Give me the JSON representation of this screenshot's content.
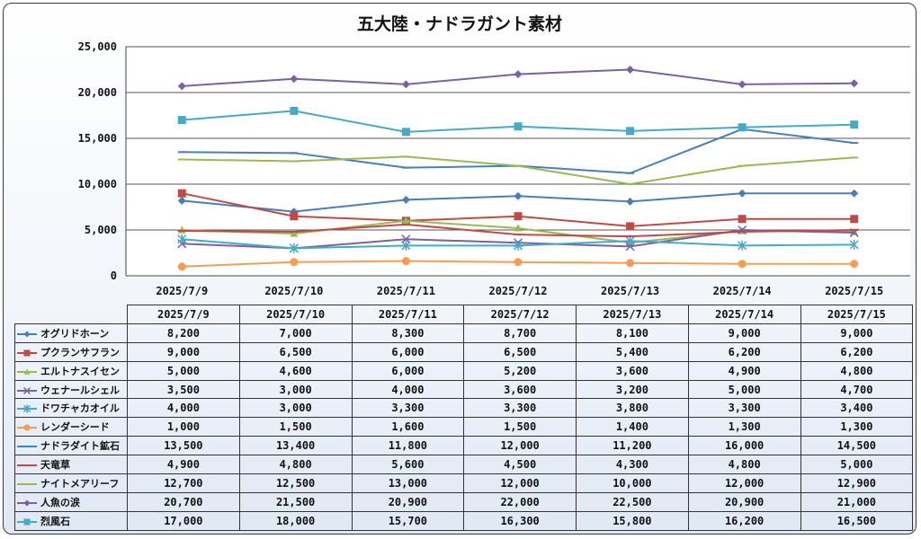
{
  "chart_data": {
    "type": "line",
    "title": "五大陸・ナドラガント素材",
    "categories": [
      "2025/7/9",
      "2025/7/10",
      "2025/7/11",
      "2025/7/12",
      "2025/7/13",
      "2025/7/14",
      "2025/7/15"
    ],
    "ylim": [
      0,
      25000
    ],
    "yticks": [
      "0",
      "5,000",
      "10,000",
      "15,000",
      "20,000",
      "25,000"
    ],
    "grid": true,
    "series": [
      {
        "name": "オグリドホーン",
        "color": "#4a7ebb",
        "marker": "diamond",
        "values": [
          8200,
          7000,
          8300,
          8700,
          8100,
          9000,
          9000
        ],
        "labels": [
          "8,200",
          "7,000",
          "8,300",
          "8,700",
          "8,100",
          "9,000",
          "9,000"
        ]
      },
      {
        "name": "プクランサフラン",
        "color": "#be4b48",
        "marker": "square",
        "values": [
          9000,
          6500,
          6000,
          6500,
          5400,
          6200,
          6200
        ],
        "labels": [
          "9,000",
          "6,500",
          "6,000",
          "6,500",
          "5,400",
          "6,200",
          "6,200"
        ]
      },
      {
        "name": "エルトナスイセン",
        "color": "#98b954",
        "marker": "triangle",
        "values": [
          5000,
          4600,
          6000,
          5200,
          3600,
          4900,
          4800
        ],
        "labels": [
          "5,000",
          "4,600",
          "6,000",
          "5,200",
          "3,600",
          "4,900",
          "4,800"
        ]
      },
      {
        "name": "ウェナールシェル",
        "color": "#7d60a0",
        "marker": "x",
        "values": [
          3500,
          3000,
          4000,
          3600,
          3200,
          5000,
          4700
        ],
        "labels": [
          "3,500",
          "3,000",
          "4,000",
          "3,600",
          "3,200",
          "5,000",
          "4,700"
        ]
      },
      {
        "name": "ドワチャカオイル",
        "color": "#46aac5",
        "marker": "star",
        "values": [
          4000,
          3000,
          3300,
          3300,
          3800,
          3300,
          3400
        ],
        "labels": [
          "4,000",
          "3,000",
          "3,300",
          "3,300",
          "3,800",
          "3,300",
          "3,400"
        ]
      },
      {
        "name": "レンダーシード",
        "color": "#f59d56",
        "marker": "circle",
        "values": [
          1000,
          1500,
          1600,
          1500,
          1400,
          1300,
          1300
        ],
        "labels": [
          "1,000",
          "1,500",
          "1,600",
          "1,500",
          "1,400",
          "1,300",
          "1,300"
        ]
      },
      {
        "name": "ナドラダイト鉱石",
        "color": "#4a7ebb",
        "marker": "dash",
        "values": [
          13500,
          13400,
          11800,
          12000,
          11200,
          16000,
          14500
        ],
        "labels": [
          "13,500",
          "13,400",
          "11,800",
          "12,000",
          "11,200",
          "16,000",
          "14,500"
        ]
      },
      {
        "name": "天竜草",
        "color": "#be4b48",
        "marker": "dash",
        "values": [
          4900,
          4800,
          5600,
          4500,
          4300,
          4800,
          5000
        ],
        "labels": [
          "4,900",
          "4,800",
          "5,600",
          "4,500",
          "4,300",
          "4,800",
          "5,000"
        ]
      },
      {
        "name": "ナイトメアリーフ",
        "color": "#98b954",
        "marker": "dash",
        "values": [
          12700,
          12500,
          13000,
          12000,
          10000,
          12000,
          12900
        ],
        "labels": [
          "12,700",
          "12,500",
          "13,000",
          "12,000",
          "10,000",
          "12,000",
          "12,900"
        ]
      },
      {
        "name": "人魚の涙",
        "color": "#7d60a0",
        "marker": "diamond",
        "values": [
          20700,
          21500,
          20900,
          22000,
          22500,
          20900,
          21000
        ],
        "labels": [
          "20,700",
          "21,500",
          "20,900",
          "22,000",
          "22,500",
          "20,900",
          "21,000"
        ]
      },
      {
        "name": "烈風石",
        "color": "#46aac5",
        "marker": "square",
        "values": [
          17000,
          18000,
          15700,
          16300,
          15800,
          16200,
          16500
        ],
        "labels": [
          "17,000",
          "18,000",
          "15,700",
          "16,300",
          "15,800",
          "16,200",
          "16,500"
        ]
      }
    ]
  }
}
